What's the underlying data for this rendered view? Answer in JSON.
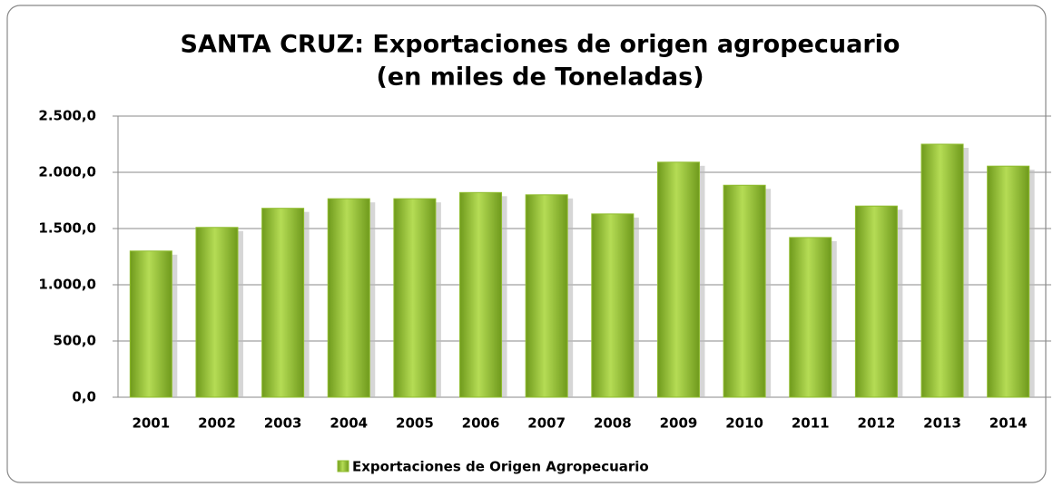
{
  "chart_data": {
    "type": "bar",
    "title": [
      "SANTA CRUZ: Exportaciones de origen agropecuario",
      "(en miles de Toneladas)"
    ],
    "categories": [
      "2001",
      "2002",
      "2003",
      "2004",
      "2005",
      "2006",
      "2007",
      "2008",
      "2009",
      "2010",
      "2011",
      "2012",
      "2013",
      "2014"
    ],
    "series": [
      {
        "name": "Exportaciones de Origen Agropecuario",
        "color": "#8fbc2e",
        "values": [
          1300,
          1510,
          1680,
          1765,
          1765,
          1820,
          1800,
          1630,
          2090,
          1885,
          1420,
          1700,
          2250,
          2055
        ]
      }
    ],
    "ylim": [
      0,
      2500
    ],
    "yticks": [
      {
        "value": 0,
        "label": "0,0"
      },
      {
        "value": 500,
        "label": "500,0"
      },
      {
        "value": 1000,
        "label": "1.000,0"
      },
      {
        "value": 1500,
        "label": "1.500,0"
      },
      {
        "value": 2000,
        "label": "2.000,0"
      },
      {
        "value": 2500,
        "label": "2.500,0"
      }
    ],
    "grid": true,
    "legend": "bottom"
  }
}
